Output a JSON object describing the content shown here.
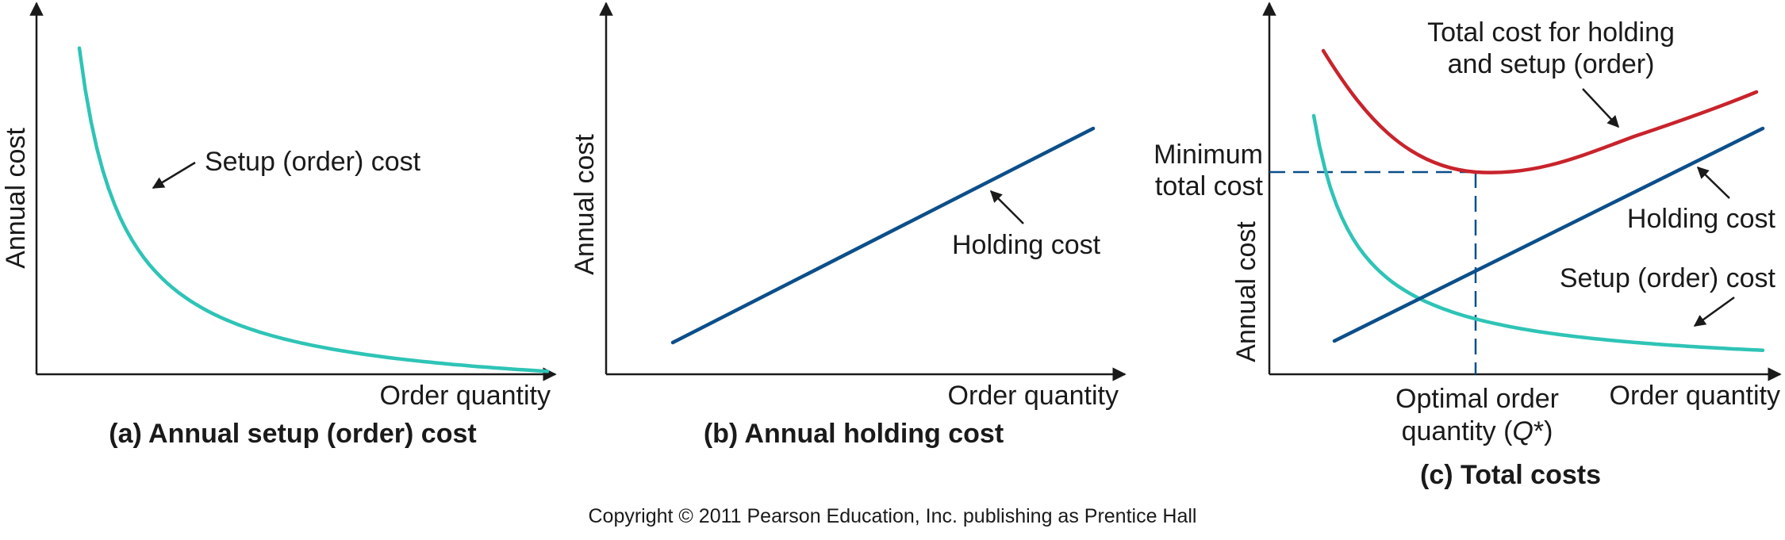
{
  "colors": {
    "setup_curve": "#2ec4b6",
    "holding_line": "#0b4f8a",
    "total_curve": "#c8232c",
    "dashed_guides": "#0b4f8a",
    "axes_and_text": "#1a1a1a"
  },
  "panels": [
    {
      "caption": "(a) Annual setup (order) cost",
      "ylabel": "Annual cost",
      "xlabel": "Order quantity",
      "labels": {
        "setup": "Setup (order) cost"
      }
    },
    {
      "caption": "(b) Annual holding cost",
      "ylabel": "Annual cost",
      "xlabel": "Order quantity",
      "labels": {
        "holding": "Holding cost"
      }
    },
    {
      "caption": "(c) Total costs",
      "ylabel": "Annual cost",
      "xlabel": "Order quantity",
      "labels": {
        "total_line1": "Total cost for holding",
        "total_line2": "and setup (order)",
        "holding": "Holding cost",
        "setup": "Setup (order) cost",
        "min_line1": "Minimum",
        "min_line2": "total cost",
        "optimal_line1": "Optimal order",
        "optimal_line2_pre": "quantity (",
        "optimal_line2_q": "Q",
        "optimal_line2_post": "*)"
      }
    }
  ],
  "copyright": "Copyright © 2011 Pearson Education, Inc. publishing as Prentice Hall"
}
